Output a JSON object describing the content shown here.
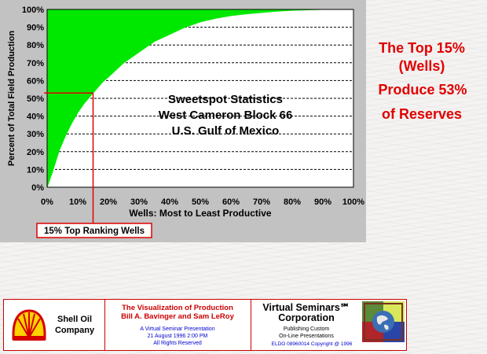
{
  "chart_data": {
    "type": "area",
    "title": "Sweetspot Statistics",
    "subtitle_lines": [
      "West Cameron Block 66",
      "U.S. Gulf of Mexico"
    ],
    "xlabel": "Wells: Most to Least Productive",
    "ylabel": "Percent of Total Field Production",
    "xlim": [
      0,
      100
    ],
    "ylim": [
      0,
      100
    ],
    "grid": true,
    "x_ticks": [
      "0%",
      "10%",
      "20%",
      "30%",
      "40%",
      "50%",
      "60%",
      "70%",
      "80%",
      "90%",
      "100%"
    ],
    "y_ticks": [
      "0%",
      "10%",
      "20%",
      "30%",
      "40%",
      "50%",
      "60%",
      "70%",
      "80%",
      "90%",
      "100%"
    ],
    "series": [
      {
        "color": "#00e800",
        "x": [
          0,
          2,
          4,
          6,
          8,
          10,
          12,
          15,
          18,
          20,
          25,
          30,
          35,
          40,
          45,
          50,
          55,
          60,
          65,
          70,
          75,
          80,
          85,
          90,
          95,
          100
        ],
        "y": [
          0,
          10,
          21,
          29,
          36,
          42,
          47,
          53,
          59,
          62,
          70,
          76,
          82,
          86,
          90,
          93,
          95,
          96.5,
          97.5,
          98.3,
          99,
          99.5,
          99.8,
          100,
          100,
          100
        ]
      }
    ],
    "marker": {
      "x": 15,
      "y": 53,
      "label": "15% Top Ranking Wells"
    },
    "marker_color": "#e00000"
  },
  "callout": {
    "line1": "The Top 15%",
    "line2": "(Wells)",
    "line3": "Produce 53%",
    "line4": "of Reserves",
    "color": "#e00000"
  },
  "footer": {
    "logo_text_line1": "Shell Oil",
    "logo_text_line2": "Company",
    "title_line1": "The Visualization of Production",
    "title_line2": "Bill A. Bavinger and Sam LeRoy",
    "info_line1": "A Virtual Seminar Presentation",
    "info_line2": "21 August 1996 2:00 PM",
    "info_line3": "All Rights Reserved",
    "corp_line1": "Virtual Seminars℠",
    "corp_line2": "Corporation",
    "corp_line3": "Publishing Custom",
    "corp_line4": "On-Line Presentations",
    "corp_line5": "ELDO 08960014 Copyright @ 1996"
  }
}
